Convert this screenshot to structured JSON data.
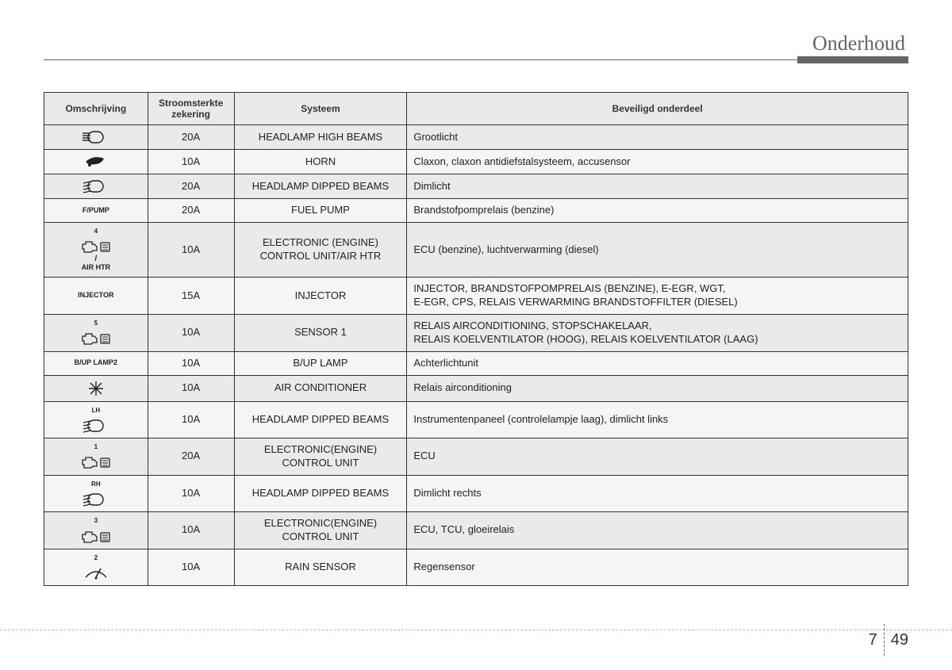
{
  "header": {
    "title": "Onderhoud"
  },
  "table": {
    "columns": [
      "Omschrijving",
      "Stroomsterkte zekering",
      "Systeem",
      "Beveiligd onderdeel"
    ],
    "rows": [
      {
        "desc_type": "icon",
        "icon": "high-beam",
        "label": "",
        "amp": "20A",
        "system": "HEADLAMP HIGH BEAMS",
        "component": "Grootlicht"
      },
      {
        "desc_type": "icon",
        "icon": "horn",
        "label": "",
        "amp": "10A",
        "system": "HORN",
        "component": "Claxon, claxon antidiefstalsysteem, accusensor"
      },
      {
        "desc_type": "icon",
        "icon": "dipped-beam",
        "label": "",
        "amp": "20A",
        "system": "HEADLAMP DIPPED BEAMS",
        "component": "Dimlicht"
      },
      {
        "desc_type": "text",
        "label": "F/PUMP",
        "amp": "20A",
        "system": "FUEL PUMP",
        "component": "Brandstofpomprelais (benzine)"
      },
      {
        "desc_type": "icon-text",
        "icon": "engine",
        "sup": "4",
        "label": "AIR HTR",
        "sep": " / ",
        "amp": "10A",
        "system": "ELECTRONIC (ENGINE) CONTROL UNIT/AIR HTR",
        "component": "ECU (benzine), luchtverwarming (diesel)"
      },
      {
        "desc_type": "text",
        "label": "INJECTOR",
        "amp": "15A",
        "system": "INJECTOR",
        "component": "INJECTOR, BRANDSTOFPOMPRELAIS (BENZINE), E-EGR, WGT,\nE-EGR, CPS, RELAIS VERWARMING BRANDSTOFFILTER (DIESEL)"
      },
      {
        "desc_type": "icon",
        "icon": "engine",
        "sup": "5",
        "label": "",
        "amp": "10A",
        "system": "SENSOR 1",
        "component": "RELAIS AIRCONDITIONING, STOPSCHAKELAAR,\nRELAIS KOELVENTILATOR (HOOG), RELAIS KOELVENTILATOR (LAAG)"
      },
      {
        "desc_type": "text",
        "label": "B/UP LAMP2",
        "amp": "10A",
        "system": "B/UP LAMP",
        "component": "Achterlichtunit"
      },
      {
        "desc_type": "icon",
        "icon": "snowflake",
        "label": "",
        "amp": "10A",
        "system": "AIR CONDITIONER",
        "component": "Relais airconditioning"
      },
      {
        "desc_type": "icon",
        "icon": "dipped-beam",
        "sup": "LH",
        "label": "",
        "amp": "10A",
        "system": "HEADLAMP DIPPED BEAMS",
        "component": "Instrumentenpaneel (controlelampje laag), dimlicht links"
      },
      {
        "desc_type": "icon",
        "icon": "engine",
        "sup": "1",
        "label": "",
        "amp": "20A",
        "system": "ELECTRONIC(ENGINE) CONTROL UNIT",
        "component": "ECU"
      },
      {
        "desc_type": "icon",
        "icon": "dipped-beam",
        "sup": "RH",
        "label": "",
        "amp": "10A",
        "system": "HEADLAMP DIPPED BEAMS",
        "component": "Dimlicht rechts"
      },
      {
        "desc_type": "icon",
        "icon": "engine",
        "sup": "3",
        "label": "",
        "amp": "10A",
        "system": "ELECTRONIC(ENGINE) CONTROL UNIT",
        "component": "ECU, TCU, gloeirelais"
      },
      {
        "desc_type": "icon",
        "icon": "wiper",
        "sup": "2",
        "label": "",
        "amp": "10A",
        "system": "RAIN SENSOR",
        "component": "Regensensor"
      }
    ]
  },
  "footer": {
    "section": "7",
    "page": "49"
  },
  "icons": {
    "high-beam": "<svg class='icon-svg' width='34' height='18' viewBox='0 0 34 18'><path d='M14 2 a7 7 0 0 0 0 14 h5 a7 7 0 0 0 0-14 z' fill='none' stroke='#222' stroke-width='1.4'/><line x1='0' y1='4' x2='10' y2='4' stroke='#222' stroke-width='1.4'/><line x1='0' y1='7' x2='10' y2='7' stroke='#222' stroke-width='1.4'/><line x1='0' y1='10' x2='10' y2='10' stroke='#222' stroke-width='1.4'/><line x1='0' y1='13' x2='10' y2='13' stroke='#222' stroke-width='1.4'/></svg>",
    "dipped-beam": "<svg class='icon-svg' width='34' height='18' viewBox='0 0 34 18'><path d='M14 2 a7 7 0 0 0 0 14 h5 a7 7 0 0 0 0-14 z' fill='none' stroke='#222' stroke-width='1.4'/><line x1='1' y1='5' x2='10' y2='3' stroke='#222' stroke-width='1.4'/><line x1='1' y1='9' x2='10' y2='7' stroke='#222' stroke-width='1.4'/><line x1='1' y1='13' x2='10' y2='11' stroke='#222' stroke-width='1.4'/><line x1='1' y1='17' x2='10' y2='15' stroke='#222' stroke-width='1.4'/></svg>",
    "horn": "<svg class='icon-svg' width='30' height='18' viewBox='0 0 30 18'><path d='M3 8 q10 -8 22 -3 q-2 4 -6 6 q-8 3 -15 0 q-2 -1 -1 -3 z' fill='#222'/><circle cx='7' cy='13' r='2' fill='#222'/></svg>",
    "engine": "<svg class='icon-svg' width='40' height='18' viewBox='0 0 40 18'><path d='M3 6 h4 v-3 h8 v3 h3 l3 3 v5 h-5 l-2 2 h-9 v-4 h-2 z' fill='none' stroke='#222' stroke-width='1.3'/><rect x='26' y='4' width='11' height='11' rx='1' fill='none' stroke='#222' stroke-width='1.3'/><line x1='28' y1='7' x2='35' y2='7' stroke='#222'/><line x1='28' y1='10' x2='35' y2='10' stroke='#222'/><line x1='28' y1='13' x2='35' y2='13' stroke='#222'/></svg>",
    "snowflake": "<svg class='icon-svg' width='20' height='20' viewBox='0 0 20 20'><g stroke='#222' stroke-width='1.4'><line x1='10' y1='1' x2='10' y2='19'/><line x1='1' y1='10' x2='19' y2='10'/><line x1='3' y1='3' x2='17' y2='17'/><line x1='17' y1='3' x2='3' y2='17'/></g></svg>",
    "wiper": "<svg class='icon-svg' width='34' height='18' viewBox='0 0 34 18'><path d='M4 14 q13 -14 26 0' fill='none' stroke='#222' stroke-width='1.4'/><line x1='17' y1='14' x2='23' y2='3' stroke='#222' stroke-width='1.6'/><circle cx='17' cy='15' r='1.5' fill='#222'/></svg>"
  }
}
